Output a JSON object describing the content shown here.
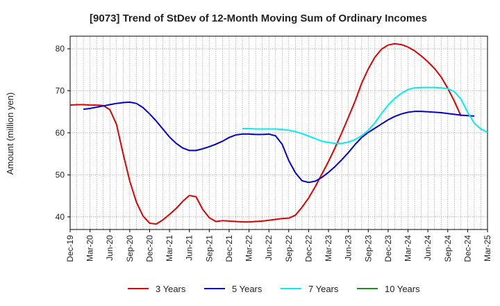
{
  "chart_data": {
    "type": "line",
    "title": "[9073]  Trend of StDev of 12-Month Moving Sum of Ordinary Incomes",
    "xlabel": "",
    "ylabel": "Amount (million yen)",
    "ylim": [
      37,
      83
    ],
    "yticks": [
      40,
      50,
      60,
      70,
      80
    ],
    "grid": true,
    "legend_position": "bottom",
    "x_tick_labels": [
      "Dec-19",
      "Mar-20",
      "Jun-20",
      "Sep-20",
      "Dec-20",
      "Mar-21",
      "Jun-21",
      "Sep-21",
      "Dec-21",
      "Mar-22",
      "Jun-22",
      "Sep-22",
      "Dec-22",
      "Mar-23",
      "Jun-23",
      "Sep-23",
      "Dec-23",
      "Mar-24",
      "Jun-24",
      "Sep-24",
      "Dec-24",
      "Mar-25"
    ],
    "series": [
      {
        "name": "3 Years",
        "color": "#dd0000",
        "start_index": 0,
        "values": [
          66.6,
          66.7,
          66.7,
          66.6,
          66.6,
          66.5,
          65.5,
          62,
          55,
          48.5,
          43.5,
          40.2,
          38.5,
          38.3,
          39.3,
          40.6,
          42,
          43.7,
          45.1,
          44.8,
          41.8,
          39.8,
          38.9,
          39.1,
          39,
          38.9,
          38.8,
          38.8,
          38.9,
          39,
          39.2,
          39.4,
          39.6,
          39.7,
          40.4,
          42.3,
          44.5,
          47.2,
          50.2,
          53.2,
          56.5,
          60,
          63.7,
          67.5,
          71.8,
          75.2,
          78,
          79.9,
          80.9,
          81.2,
          81,
          80.4,
          79.5,
          78.3,
          76.9,
          75.3,
          73.3,
          70.6,
          67.5,
          64
        ]
      },
      {
        "name": "5 Years",
        "color": "#0000cc",
        "start_index": 2,
        "values": [
          65.6,
          65.8,
          66.1,
          66.4,
          66.7,
          67,
          67.2,
          67.3,
          67,
          66,
          64.5,
          62.8,
          60.9,
          59,
          57.5,
          56.4,
          55.8,
          55.8,
          56.2,
          56.7,
          57.3,
          58,
          58.9,
          59.5,
          59.7,
          59.7,
          59.6,
          59.6,
          59.7,
          59.3,
          57.3,
          53.4,
          50.5,
          48.6,
          48.2,
          48.5,
          49.4,
          50.6,
          52,
          53.6,
          55.3,
          57.2,
          58.9,
          60.1,
          61.1,
          62.1,
          63.1,
          63.9,
          64.5,
          64.9,
          65.1,
          65.1,
          65,
          64.9,
          64.8,
          64.6,
          64.4,
          64.2,
          64.1,
          64
        ]
      },
      {
        "name": "7 Years",
        "color": "#00eeee",
        "start_index": 26,
        "values": [
          61,
          61,
          60.9,
          60.9,
          60.9,
          60.9,
          60.8,
          60.6,
          60.3,
          59.8,
          59.2,
          58.6,
          58,
          57.7,
          57.5,
          57.5,
          57.8,
          58.4,
          59.3,
          60.6,
          62.4,
          64.6,
          66.6,
          68.2,
          69.4,
          70.3,
          70.7,
          70.8,
          70.8,
          70.8,
          70.7,
          70.5,
          69.8,
          68,
          64.9,
          62.3,
          60.9,
          60.1
        ]
      },
      {
        "name": "10 Years",
        "color": "#228822",
        "start_index": 0,
        "values": []
      }
    ]
  }
}
